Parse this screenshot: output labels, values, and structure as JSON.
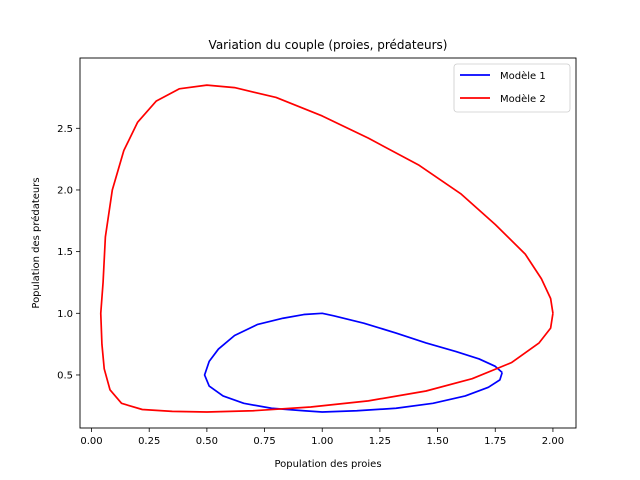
{
  "chart_data": {
    "type": "line",
    "title": "Variation du couple (proies, prédateurs)",
    "xlabel": "Population des proies",
    "ylabel": "Population des prédateurs",
    "xlim": [
      -0.05,
      2.1
    ],
    "ylim": [
      0.07,
      3.07
    ],
    "x_ticks": [
      0.0,
      0.25,
      0.5,
      0.75,
      1.0,
      1.25,
      1.5,
      1.75,
      2.0
    ],
    "x_tick_labels": [
      "0.00",
      "0.25",
      "0.50",
      "0.75",
      "1.00",
      "1.25",
      "1.50",
      "1.75",
      "2.00"
    ],
    "y_ticks": [
      0.5,
      1.0,
      1.5,
      2.0,
      2.5
    ],
    "y_tick_labels": [
      "0.5",
      "1.0",
      "1.5",
      "2.0",
      "2.5"
    ],
    "grid": false,
    "legend": "upper-right",
    "series": [
      {
        "name": "Modèle 1",
        "color": "#0000ff",
        "points": [
          [
            1.78,
            0.52
          ],
          [
            1.75,
            0.57
          ],
          [
            1.68,
            0.63
          ],
          [
            1.58,
            0.69
          ],
          [
            1.45,
            0.76
          ],
          [
            1.32,
            0.84
          ],
          [
            1.18,
            0.92
          ],
          [
            1.05,
            0.98
          ],
          [
            1.0,
            1.0
          ],
          [
            0.92,
            0.99
          ],
          [
            0.83,
            0.96
          ],
          [
            0.72,
            0.91
          ],
          [
            0.62,
            0.82
          ],
          [
            0.55,
            0.71
          ],
          [
            0.51,
            0.61
          ],
          [
            0.49,
            0.5
          ],
          [
            0.51,
            0.41
          ],
          [
            0.57,
            0.33
          ],
          [
            0.66,
            0.27
          ],
          [
            0.78,
            0.23
          ],
          [
            0.92,
            0.21
          ],
          [
            1.0,
            0.2
          ],
          [
            1.15,
            0.21
          ],
          [
            1.32,
            0.23
          ],
          [
            1.48,
            0.27
          ],
          [
            1.62,
            0.33
          ],
          [
            1.72,
            0.4
          ],
          [
            1.77,
            0.46
          ],
          [
            1.78,
            0.52
          ]
        ]
      },
      {
        "name": "Modèle 2",
        "color": "#ff0000",
        "points": [
          [
            2.0,
            1.0
          ],
          [
            1.99,
            1.12
          ],
          [
            1.95,
            1.28
          ],
          [
            1.88,
            1.48
          ],
          [
            1.75,
            1.72
          ],
          [
            1.6,
            1.97
          ],
          [
            1.42,
            2.2
          ],
          [
            1.2,
            2.42
          ],
          [
            1.0,
            2.6
          ],
          [
            0.8,
            2.75
          ],
          [
            0.62,
            2.83
          ],
          [
            0.5,
            2.85
          ],
          [
            0.38,
            2.82
          ],
          [
            0.28,
            2.72
          ],
          [
            0.2,
            2.55
          ],
          [
            0.14,
            2.32
          ],
          [
            0.09,
            2.0
          ],
          [
            0.06,
            1.62
          ],
          [
            0.05,
            1.25
          ],
          [
            0.04,
            1.0
          ],
          [
            0.045,
            0.75
          ],
          [
            0.055,
            0.55
          ],
          [
            0.08,
            0.38
          ],
          [
            0.13,
            0.27
          ],
          [
            0.22,
            0.22
          ],
          [
            0.35,
            0.205
          ],
          [
            0.5,
            0.2
          ],
          [
            0.7,
            0.21
          ],
          [
            0.95,
            0.24
          ],
          [
            1.2,
            0.29
          ],
          [
            1.45,
            0.37
          ],
          [
            1.65,
            0.47
          ],
          [
            1.82,
            0.6
          ],
          [
            1.94,
            0.76
          ],
          [
            1.99,
            0.88
          ],
          [
            2.0,
            1.0
          ]
        ]
      }
    ]
  }
}
